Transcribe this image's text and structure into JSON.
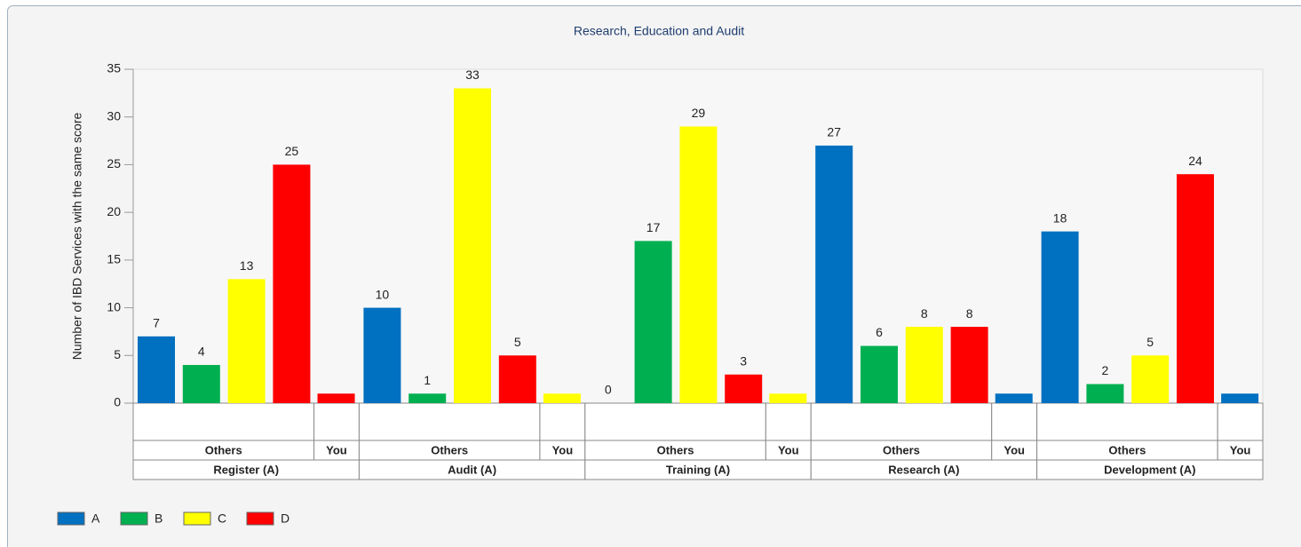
{
  "chart_data": {
    "type": "bar",
    "title": "Research, Education and Audit",
    "ylabel": "Number of IBD Services with the same score",
    "ylim": [
      0,
      35
    ],
    "yticks": [
      0,
      5,
      10,
      15,
      20,
      25,
      30,
      35
    ],
    "grid": false,
    "legend": "bottom-left",
    "categories": [
      "Register (A)",
      "Audit (A)",
      "Training (A)",
      "Research (A)",
      "Development (A)"
    ],
    "others_label": "Others",
    "series": [
      {
        "name": "A",
        "color": "#0070c0",
        "values": [
          7,
          10,
          0,
          27,
          18
        ]
      },
      {
        "name": "B",
        "color": "#00b050",
        "values": [
          4,
          1,
          17,
          6,
          2
        ]
      },
      {
        "name": "C",
        "color": "#ffff00",
        "values": [
          13,
          33,
          29,
          8,
          5
        ]
      },
      {
        "name": "D",
        "color": "#ff0000",
        "values": [
          25,
          5,
          3,
          8,
          24
        ]
      }
    ],
    "you": {
      "label": "You",
      "values": [
        1,
        1,
        1,
        1,
        1
      ],
      "colors": [
        "#ff0000",
        "#ffff00",
        "#ffff00",
        "#0070c0",
        "#0070c0"
      ]
    }
  }
}
